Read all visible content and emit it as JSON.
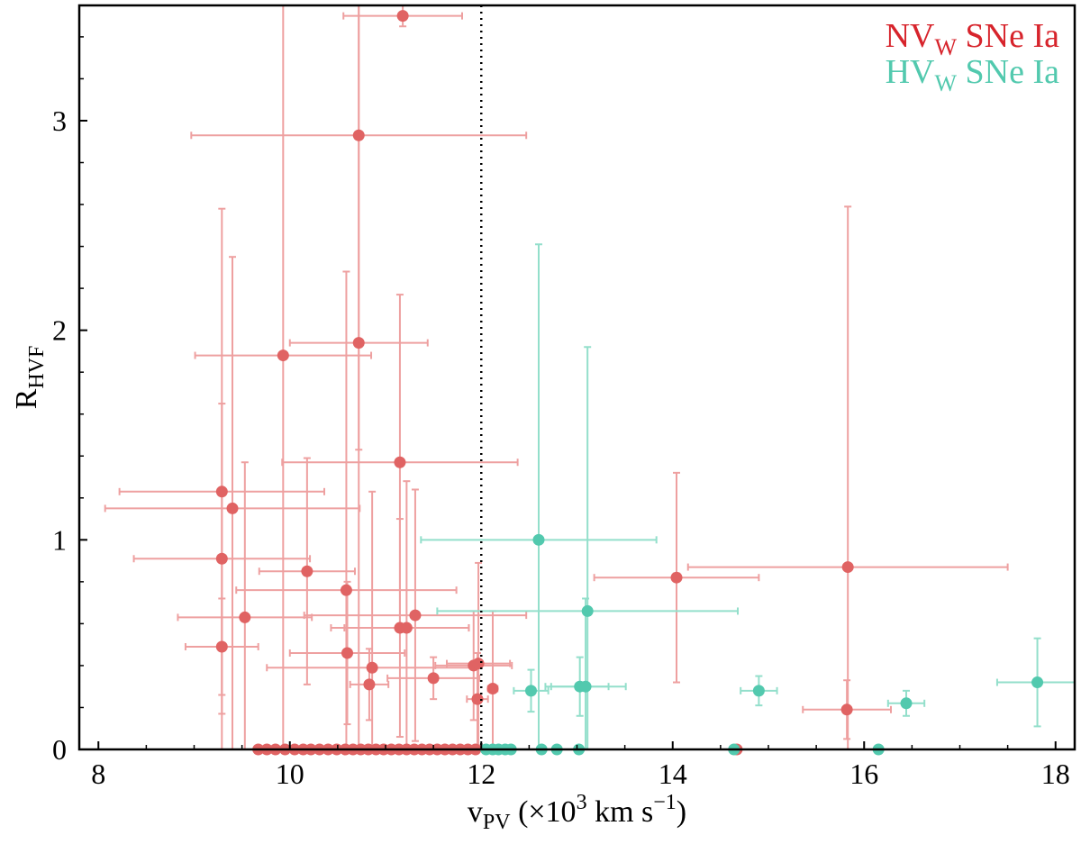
{
  "chart_data": {
    "type": "scatter",
    "title": "",
    "xlabel": {
      "main": "v",
      "sub": "PV",
      "rest1": " (×10",
      "sup1": "3",
      "rest2": " km s",
      "sup2": "−1",
      "rest3": ")"
    },
    "ylabel": {
      "main": "R",
      "sub": "HVF"
    },
    "xlim": [
      7.8,
      18.2
    ],
    "ylim": [
      0,
      3.55
    ],
    "xticks": [
      8,
      10,
      12,
      14,
      16,
      18
    ],
    "yticks": [
      0,
      1,
      2,
      3
    ],
    "xtick_labels": [
      "8",
      "10",
      "12",
      "14",
      "16",
      "18"
    ],
    "ytick_labels": [
      "0",
      "1",
      "2",
      "3"
    ],
    "grid": false,
    "legend_position": "top-right",
    "vline": {
      "x": 12.0,
      "style": "dotted",
      "color": "#000000"
    },
    "series": [
      {
        "name": "NV_W SNe Ia",
        "legend": {
          "main": "NV",
          "sub": "W",
          "rest": " SNe Ia"
        },
        "color": "#e06363",
        "errcolor": "#eea0a0",
        "points": [
          {
            "x": 11.18,
            "y": 3.5,
            "xerr": 0.62,
            "yerr": 0.05
          },
          {
            "x": 10.72,
            "y": 2.93,
            "xerr": 1.75,
            "yerr": 1.5
          },
          {
            "x": 9.93,
            "y": 1.88,
            "xerr": 0.92,
            "yerr": 1.9
          },
          {
            "x": 10.72,
            "y": 1.94,
            "xerr": 0.72,
            "yerr": 2.0
          },
          {
            "x": 11.15,
            "y": 1.37,
            "xerr": 1.23,
            "yerr": 0.8
          },
          {
            "x": 9.29,
            "y": 1.23,
            "xerr": 1.07,
            "yerr": 1.35
          },
          {
            "x": 9.4,
            "y": 1.15,
            "xerr": 1.33,
            "yerr": 1.2
          },
          {
            "x": 9.29,
            "y": 0.91,
            "xerr": 0.92,
            "yerr": 0.74
          },
          {
            "x": 10.18,
            "y": 0.85,
            "xerr": 0.5,
            "yerr": 0.54
          },
          {
            "x": 10.59,
            "y": 0.76,
            "xerr": 1.15,
            "yerr": 1.52
          },
          {
            "x": 9.53,
            "y": 0.63,
            "xerr": 0.7,
            "yerr": 0.74
          },
          {
            "x": 11.31,
            "y": 0.64,
            "xerr": 1.16,
            "yerr": 0.6
          },
          {
            "x": 11.15,
            "y": 0.58,
            "xerr": 0.72,
            "yerr": 0.52
          },
          {
            "x": 11.22,
            "y": 0.58,
            "xerr": 0.65,
            "yerr": 0.7
          },
          {
            "x": 9.29,
            "y": 0.49,
            "xerr": 0.38,
            "yerr": 0.23
          },
          {
            "x": 10.6,
            "y": 0.46,
            "xerr": 0.6,
            "yerr": 0.34
          },
          {
            "x": 10.86,
            "y": 0.39,
            "xerr": 1.1,
            "yerr": 0.84
          },
          {
            "x": 11.5,
            "y": 0.34,
            "xerr": 0.48,
            "yerr": 0.1
          },
          {
            "x": 11.92,
            "y": 0.4,
            "xerr": 0.4,
            "yerr": 0.26
          },
          {
            "x": 11.97,
            "y": 0.41,
            "xerr": 0.33,
            "yerr": 0.48
          },
          {
            "x": 10.83,
            "y": 0.31,
            "xerr": 0.2,
            "yerr": 0.17
          },
          {
            "x": 11.96,
            "y": 0.24,
            "xerr": 0.11,
            "yerr": 0.22
          },
          {
            "x": 12.12,
            "y": 0.29,
            "xerr": 0.05,
            "yerr": 0.37
          },
          {
            "x": 14.04,
            "y": 0.82,
            "xerr": 0.86,
            "yerr": 0.5
          },
          {
            "x": 15.83,
            "y": 0.87,
            "xerr": 1.67,
            "yerr": 1.72
          },
          {
            "x": 15.82,
            "y": 0.19,
            "xerr": 0.46,
            "yerr": 0.14
          },
          {
            "x": 9.67,
            "y": 0
          },
          {
            "x": 9.76,
            "y": 0
          },
          {
            "x": 9.85,
            "y": 0
          },
          {
            "x": 9.95,
            "y": 0
          },
          {
            "x": 10.05,
            "y": 0
          },
          {
            "x": 10.14,
            "y": 0
          },
          {
            "x": 10.22,
            "y": 0
          },
          {
            "x": 10.31,
            "y": 0
          },
          {
            "x": 10.4,
            "y": 0
          },
          {
            "x": 10.49,
            "y": 0
          },
          {
            "x": 10.58,
            "y": 0
          },
          {
            "x": 10.66,
            "y": 0
          },
          {
            "x": 10.74,
            "y": 0
          },
          {
            "x": 10.82,
            "y": 0
          },
          {
            "x": 10.9,
            "y": 0
          },
          {
            "x": 10.98,
            "y": 0
          },
          {
            "x": 11.06,
            "y": 0
          },
          {
            "x": 11.14,
            "y": 0
          },
          {
            "x": 11.22,
            "y": 0
          },
          {
            "x": 11.3,
            "y": 0
          },
          {
            "x": 11.38,
            "y": 0
          },
          {
            "x": 11.46,
            "y": 0
          },
          {
            "x": 11.54,
            "y": 0
          },
          {
            "x": 11.62,
            "y": 0
          },
          {
            "x": 11.7,
            "y": 0
          },
          {
            "x": 11.78,
            "y": 0
          },
          {
            "x": 11.86,
            "y": 0
          },
          {
            "x": 11.94,
            "y": 0
          },
          {
            "x": 14.67,
            "y": 0
          }
        ]
      },
      {
        "name": "HV_W SNe Ia",
        "legend": {
          "main": "HV",
          "sub": "W",
          "rest": " SNe Ia"
        },
        "color": "#52c9ae",
        "errcolor": "#93dfcb",
        "points": [
          {
            "x": 12.6,
            "y": 1.0,
            "xerr": 1.23,
            "yerr": 1.41
          },
          {
            "x": 13.11,
            "y": 0.66,
            "xerr": 1.57,
            "yerr": 1.26
          },
          {
            "x": 12.52,
            "y": 0.28,
            "xerr": 0.18,
            "yerr": 0.1
          },
          {
            "x": 13.03,
            "y": 0.3,
            "xerr": 0.3,
            "yerr": 0.14
          },
          {
            "x": 13.09,
            "y": 0.3,
            "xerr": 0.42,
            "yerr": 0.42
          },
          {
            "x": 14.9,
            "y": 0.28,
            "xerr": 0.19,
            "yerr": 0.07
          },
          {
            "x": 16.44,
            "y": 0.22,
            "xerr": 0.19,
            "yerr": 0.06
          },
          {
            "x": 17.81,
            "y": 0.32,
            "xerr": 0.42,
            "yerr": 0.21
          },
          {
            "x": 12.05,
            "y": 0
          },
          {
            "x": 12.12,
            "y": 0
          },
          {
            "x": 12.18,
            "y": 0
          },
          {
            "x": 12.25,
            "y": 0
          },
          {
            "x": 12.31,
            "y": 0
          },
          {
            "x": 12.63,
            "y": 0
          },
          {
            "x": 12.79,
            "y": 0
          },
          {
            "x": 13.02,
            "y": 0
          },
          {
            "x": 14.64,
            "y": 0
          },
          {
            "x": 16.15,
            "y": 0
          }
        ]
      }
    ]
  }
}
